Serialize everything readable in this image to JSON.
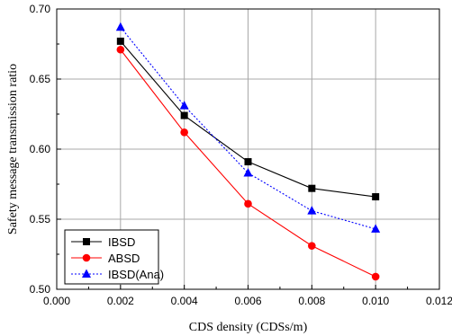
{
  "chart_data": {
    "type": "line",
    "xlabel": "CDS density (CDSs/m)",
    "ylabel": "Safety message transmission ratio",
    "xlim": [
      0.0,
      0.012
    ],
    "ylim": [
      0.5,
      0.7
    ],
    "x_ticks": [
      "0.000",
      "0.002",
      "0.004",
      "0.006",
      "0.008",
      "0.010",
      "0.012"
    ],
    "y_ticks": [
      "0.50",
      "0.55",
      "0.60",
      "0.65",
      "0.70"
    ],
    "x_tick_values": [
      0.0,
      0.002,
      0.004,
      0.006,
      0.008,
      0.01,
      0.012
    ],
    "y_tick_values": [
      0.5,
      0.55,
      0.6,
      0.65,
      0.7
    ],
    "grid": true,
    "legend_position": "bottom-left",
    "x": [
      0.002,
      0.004,
      0.006,
      0.008,
      0.01
    ],
    "series": [
      {
        "name": "IBSD",
        "values": [
          0.677,
          0.624,
          0.591,
          0.572,
          0.566
        ],
        "color": "#000000",
        "marker": "square",
        "line_style": "solid"
      },
      {
        "name": "ABSD",
        "values": [
          0.671,
          0.612,
          0.561,
          0.531,
          0.509
        ],
        "color": "#ff0000",
        "marker": "circle",
        "line_style": "solid"
      },
      {
        "name": "IBSD(Ana)",
        "values": [
          0.687,
          0.631,
          0.583,
          0.556,
          0.543
        ],
        "color": "#0000ff",
        "marker": "triangle",
        "line_style": "dotted"
      }
    ]
  }
}
